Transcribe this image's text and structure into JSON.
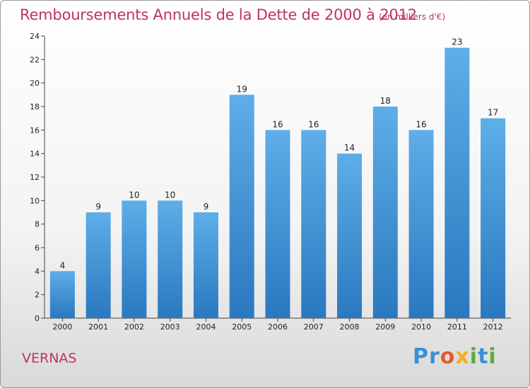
{
  "chart_data": {
    "type": "bar",
    "title": "Remboursements Annuels de la Dette de 2000 à 2012",
    "subtitle": "(en milliers d'€)",
    "categories": [
      "2000",
      "2001",
      "2002",
      "2003",
      "2004",
      "2005",
      "2006",
      "2007",
      "2008",
      "2009",
      "2010",
      "2011",
      "2012"
    ],
    "values": [
      4,
      9,
      10,
      10,
      9,
      19,
      16,
      16,
      14,
      18,
      16,
      23,
      17
    ],
    "ylim": [
      0,
      24
    ],
    "yticks": [
      0,
      2,
      4,
      6,
      8,
      10,
      12,
      14,
      16,
      18,
      20,
      22,
      24
    ],
    "grid": false,
    "bar_color": "#3b8fd6"
  },
  "commune": "VERNAS",
  "logo": {
    "letters": [
      {
        "char": "P",
        "color": "#3a8fd8"
      },
      {
        "char": "r",
        "color": "#3a8fd8"
      },
      {
        "char": "o",
        "color": "#e35b2b"
      },
      {
        "char": "x",
        "color": "#f2b01e"
      },
      {
        "char": "i",
        "color": "#5aae3a"
      },
      {
        "char": "t",
        "color": "#3a8fd8"
      },
      {
        "char": "i",
        "color": "#5aae3a"
      }
    ]
  }
}
